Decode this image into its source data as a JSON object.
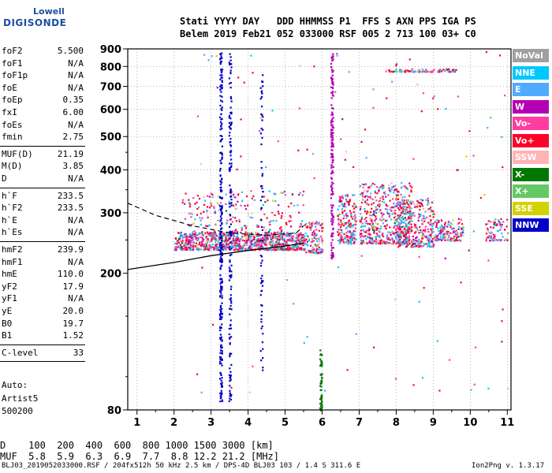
{
  "logo": {
    "line1": "Lowell",
    "line2": "DIGISONDE"
  },
  "header": {
    "line1": "Stati YYYY DAY   DDD HHMMSS P1  FFS S AXN PPS IGA PS",
    "line2": "Belem 2019 Feb21 052 033000 RSF 005 2 713 100 03+ C0"
  },
  "params_group1": [
    {
      "name": "foF2",
      "value": "5.500"
    },
    {
      "name": "foF1",
      "value": "N/A"
    },
    {
      "name": "foF1p",
      "value": "N/A"
    },
    {
      "name": "foE",
      "value": "N/A"
    },
    {
      "name": "foEp",
      "value": "0.35"
    },
    {
      "name": "fxI",
      "value": "6.00"
    },
    {
      "name": "foEs",
      "value": "N/A"
    },
    {
      "name": "fmin",
      "value": "2.75"
    }
  ],
  "params_group2": [
    {
      "name": "MUF(D)",
      "value": "21.19"
    },
    {
      "name": "M(D)",
      "value": "3.85"
    },
    {
      "name": "D",
      "value": "N/A"
    }
  ],
  "params_group3": [
    {
      "name": "h`F",
      "value": "233.5"
    },
    {
      "name": "h`F2",
      "value": "233.5"
    },
    {
      "name": "h`E",
      "value": "N/A"
    },
    {
      "name": "h`Es",
      "value": "N/A"
    }
  ],
  "params_group4": [
    {
      "name": "hmF2",
      "value": "239.9"
    },
    {
      "name": "hmF1",
      "value": "N/A"
    },
    {
      "name": "hmE",
      "value": "110.0"
    },
    {
      "name": "yF2",
      "value": "17.9"
    },
    {
      "name": "yF1",
      "value": "N/A"
    },
    {
      "name": "yE",
      "value": "20.0"
    },
    {
      "name": "B0",
      "value": "19.7"
    },
    {
      "name": "B1",
      "value": "1.52"
    }
  ],
  "params_group5": [
    {
      "name": "C-level",
      "value": "33"
    }
  ],
  "auto": {
    "line1": "Auto:",
    "line2": "Artist5",
    "line3": "500200"
  },
  "legend": [
    {
      "label": "NoVal",
      "color": "#a0a0a0"
    },
    {
      "label": "NNE",
      "color": "#00c8ff"
    },
    {
      "label": "E",
      "color": "#50aaff"
    },
    {
      "label": "W",
      "color": "#b400b4"
    },
    {
      "label": "Vo-",
      "color": "#ff3ca0"
    },
    {
      "label": "Vo+",
      "color": "#ff0028"
    },
    {
      "label": "SSW",
      "color": "#ffb4b4"
    },
    {
      "label": "X-",
      "color": "#007800"
    },
    {
      "label": "X+",
      "color": "#64c864"
    },
    {
      "label": "SSE",
      "color": "#d2d200"
    },
    {
      "label": "NNW",
      "color": "#0000c8"
    }
  ],
  "dtable": {
    "d_line": "D    100  200  400  600  800 1000 1500 3000 [km]",
    "muf_line": "MUF  5.8  5.9  6.3  6.9  7.7  8.8 12.2 21.2 [MHz]"
  },
  "footer": {
    "left": "BLJ03_2019052033000.RSF / 204fx512h 50 kHz 2.5 km / DPS-4D BLJ03 103 / 1.4 S 311.6 E",
    "right": "Ion2Png v. 1.3.17"
  },
  "chart_data": {
    "type": "scatter",
    "xlim": [
      0.75,
      11.1
    ],
    "ylim": [
      80,
      900
    ],
    "y_scale": "log",
    "xticks": [
      "1",
      "2",
      "3",
      "4",
      "5",
      "6",
      "7",
      "8",
      "9",
      "10",
      "11"
    ],
    "yticks": [
      "80",
      "200",
      "300",
      "400",
      "500",
      "600",
      "700",
      "800",
      "900"
    ],
    "grid": "dotted",
    "trace_solid": [
      [
        0.75,
        205
      ],
      [
        2,
        215
      ],
      [
        3,
        225
      ],
      [
        4,
        233
      ],
      [
        5,
        240
      ],
      [
        5.5,
        245
      ]
    ],
    "trace_dashed": [
      [
        0.75,
        320
      ],
      [
        1.5,
        295
      ],
      [
        2.5,
        275
      ],
      [
        3.5,
        262
      ],
      [
        4.5,
        258
      ],
      [
        5.3,
        262
      ],
      [
        5.5,
        275
      ]
    ],
    "echo_clusters": [
      {
        "x0": 2.0,
        "x1": 5.5,
        "y0": 235,
        "y1": 265,
        "n": 900
      },
      {
        "x0": 5.5,
        "x1": 6.0,
        "y0": 230,
        "y1": 285,
        "n": 120
      },
      {
        "x0": 6.4,
        "x1": 6.9,
        "y0": 245,
        "y1": 340,
        "n": 200
      },
      {
        "x0": 7.0,
        "x1": 8.4,
        "y0": 245,
        "y1": 370,
        "n": 500
      },
      {
        "x0": 8.0,
        "x1": 9.0,
        "y0": 240,
        "y1": 330,
        "n": 350
      },
      {
        "x0": 9.0,
        "x1": 9.8,
        "y0": 250,
        "y1": 290,
        "n": 140
      },
      {
        "x0": 10.4,
        "x1": 11.0,
        "y0": 250,
        "y1": 290,
        "n": 80
      },
      {
        "x0": 2.2,
        "x1": 5.5,
        "y0": 250,
        "y1": 350,
        "n": 260
      },
      {
        "x0": 7.7,
        "x1": 9.6,
        "y0": 775,
        "y1": 790,
        "n": 90
      },
      {
        "x0": 2.6,
        "x1": 11.0,
        "y0": 90,
        "y1": 890,
        "n": 130
      }
    ],
    "vertical_streaks": [
      {
        "x": 3.25,
        "y0": 85,
        "y1": 895,
        "n": 260
      },
      {
        "x": 3.5,
        "y0": 85,
        "y1": 880,
        "n": 150
      },
      {
        "x": 6.25,
        "y0": 220,
        "y1": 880,
        "n": 170
      },
      {
        "x": 4.35,
        "y0": 100,
        "y1": 760,
        "n": 70
      },
      {
        "x": 5.95,
        "y0": 80,
        "y1": 120,
        "n": 60
      }
    ]
  }
}
